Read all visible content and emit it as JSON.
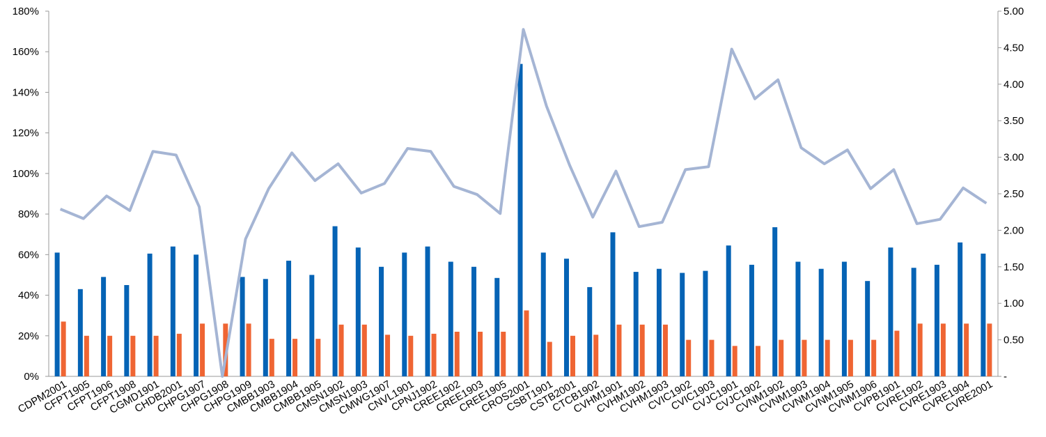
{
  "chart_data": {
    "type": "bar",
    "categories": [
      "CDPM2001",
      "CFPT1905",
      "CFPT1906",
      "CFPT1908",
      "CGMD1901",
      "CHDB2001",
      "CHPG1907",
      "CHPG1908",
      "CHPG1909",
      "CMBB1903",
      "CMBB1904",
      "CMBB1905",
      "CMSN1902",
      "CMSN1903",
      "CMWG1907",
      "CNVL1901",
      "CPNJ1902",
      "CREE1902",
      "CREE1903",
      "CREE1905",
      "CROS2001",
      "CSBT1901",
      "CSTB2001",
      "CTCB1902",
      "CVHM1901",
      "CVHM1902",
      "CVHM1903",
      "CVIC1902",
      "CVIC1903",
      "CVJC1901",
      "CVJC1902",
      "CVNM1902",
      "CVNM1903",
      "CVNM1904",
      "CVNM1905",
      "CVNM1906",
      "CVPB1901",
      "CVRE1902",
      "CVRE1903",
      "CVRE1904",
      "CVRE2001"
    ],
    "series": [
      {
        "type": "bar",
        "color": "#0563b5",
        "values": [
          61,
          43,
          49,
          45,
          60.5,
          64,
          60,
          0,
          49,
          48,
          57,
          50,
          74,
          63.5,
          54,
          61,
          64,
          56.5,
          54,
          48.5,
          154,
          61,
          58,
          44,
          71,
          51.5,
          53,
          51,
          52,
          64.5,
          55,
          73.5,
          56.5,
          53,
          56.5,
          47,
          63.5,
          53.5,
          55,
          66,
          60.5
        ]
      },
      {
        "type": "bar",
        "color": "#ef6533",
        "values": [
          27,
          20,
          20,
          20,
          20,
          21,
          26,
          26,
          26,
          18.5,
          18.5,
          18.5,
          25.5,
          25.5,
          20.5,
          20,
          21,
          22,
          22,
          22,
          32.5,
          17,
          20,
          20.5,
          25.5,
          25.5,
          25.5,
          18,
          18,
          15,
          15,
          18,
          18,
          18,
          18,
          18,
          22.5,
          26,
          26,
          26,
          26
        ]
      },
      {
        "type": "line",
        "axis": "y2",
        "color": "#a5b5d4",
        "values": [
          2.29,
          2.16,
          2.47,
          2.27,
          3.08,
          3.03,
          2.32,
          0,
          1.88,
          2.57,
          3.06,
          2.68,
          2.91,
          2.51,
          2.64,
          3.12,
          3.08,
          2.6,
          2.49,
          2.23,
          4.75,
          3.7,
          2.89,
          2.18,
          2.81,
          2.05,
          2.11,
          2.83,
          2.87,
          4.48,
          3.8,
          4.06,
          3.13,
          2.91,
          3.1,
          2.57,
          2.83,
          2.09,
          2.15,
          2.58,
          2.37
        ]
      }
    ],
    "ylim": [
      0,
      180
    ],
    "yticks": [
      {
        "value": 0,
        "label": "0%"
      },
      {
        "value": 20,
        "label": "20%"
      },
      {
        "value": 40,
        "label": "40%"
      },
      {
        "value": 60,
        "label": "60%"
      },
      {
        "value": 80,
        "label": "80%"
      },
      {
        "value": 100,
        "label": "100%"
      },
      {
        "value": 120,
        "label": "120%"
      },
      {
        "value": 140,
        "label": "140%"
      },
      {
        "value": 160,
        "label": "160%"
      },
      {
        "value": 180,
        "label": "180%"
      }
    ],
    "y2lim": [
      0,
      5
    ],
    "y2ticks": [
      {
        "value": 0,
        "label": "-"
      },
      {
        "value": 0.5,
        "label": "0.50"
      },
      {
        "value": 1,
        "label": "1.00"
      },
      {
        "value": 1.5,
        "label": "1.50"
      },
      {
        "value": 2,
        "label": "2.00"
      },
      {
        "value": 2.5,
        "label": "2.50"
      },
      {
        "value": 3,
        "label": "3.00"
      },
      {
        "value": 3.5,
        "label": "3.50"
      },
      {
        "value": 4,
        "label": "4.00"
      },
      {
        "value": 4.5,
        "label": "4.50"
      },
      {
        "value": 5,
        "label": "5.00"
      }
    ]
  }
}
